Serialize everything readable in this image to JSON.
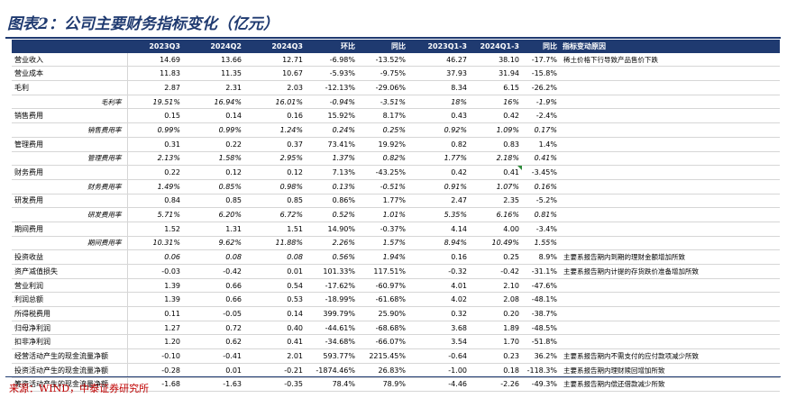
{
  "title": "图表2：公司主要财务指标变化（亿元）",
  "source": "来源：WIND，中泰证券研究所",
  "columns": [
    "",
    "2023Q3",
    "2024Q2",
    "2024Q3",
    "环比",
    "同比",
    "2023Q1-3",
    "2024Q1-3",
    "同比",
    "指标变动原因"
  ],
  "rows": [
    {
      "label": "营业收入",
      "c": [
        "14.69",
        "13.66",
        "12.71",
        "-6.98%",
        "-13.52%",
        "46.27",
        "38.10",
        "-17.7%"
      ],
      "note": "稀土价格下行导致产品售价下跌",
      "ratio": false
    },
    {
      "label": "营业成本",
      "c": [
        "11.83",
        "11.35",
        "10.67",
        "-5.93%",
        "-9.75%",
        "37.93",
        "31.94",
        "-15.8%"
      ],
      "note": "",
      "ratio": false
    },
    {
      "label": "毛利",
      "c": [
        "2.87",
        "2.31",
        "2.03",
        "-12.13%",
        "-29.06%",
        "8.34",
        "6.15",
        "-26.2%"
      ],
      "note": "",
      "ratio": false
    },
    {
      "label": "毛利率",
      "c": [
        "19.51%",
        "16.94%",
        "16.01%",
        "-0.94%",
        "-3.51%",
        "18%",
        "16%",
        "-1.9%"
      ],
      "note": "",
      "ratio": true
    },
    {
      "label": "销售费用",
      "c": [
        "0.15",
        "0.14",
        "0.16",
        "15.92%",
        "8.17%",
        "0.43",
        "0.42",
        "-2.4%"
      ],
      "note": "",
      "ratio": false
    },
    {
      "label": "销售费用率",
      "c": [
        "0.99%",
        "0.99%",
        "1.24%",
        "0.24%",
        "0.25%",
        "0.92%",
        "1.09%",
        "0.17%"
      ],
      "note": "",
      "ratio": true
    },
    {
      "label": "管理费用",
      "c": [
        "0.31",
        "0.22",
        "0.37",
        "73.41%",
        "19.92%",
        "0.82",
        "0.83",
        "1.4%"
      ],
      "note": "",
      "ratio": false
    },
    {
      "label": "管理费用率",
      "c": [
        "2.13%",
        "1.58%",
        "2.95%",
        "1.37%",
        "0.82%",
        "1.77%",
        "2.18%",
        "0.41%"
      ],
      "note": "",
      "ratio": true
    },
    {
      "label": "财务费用",
      "c": [
        "0.22",
        "0.12",
        "0.12",
        "7.13%",
        "-43.25%",
        "0.42",
        "0.41",
        "-3.45%"
      ],
      "note": "",
      "ratio": false
    },
    {
      "label": "财务费用率",
      "c": [
        "1.49%",
        "0.85%",
        "0.98%",
        "0.13%",
        "-0.51%",
        "0.91%",
        "1.07%",
        "0.16%"
      ],
      "note": "",
      "ratio": true
    },
    {
      "label": "研发费用",
      "c": [
        "0.84",
        "0.85",
        "0.85",
        "0.86%",
        "1.77%",
        "2.47",
        "2.35",
        "-5.2%"
      ],
      "note": "",
      "ratio": false
    },
    {
      "label": "研发费用率",
      "c": [
        "5.71%",
        "6.20%",
        "6.72%",
        "0.52%",
        "1.01%",
        "5.35%",
        "6.16%",
        "0.81%"
      ],
      "note": "",
      "ratio": true
    },
    {
      "label": "期间费用",
      "c": [
        "1.52",
        "1.31",
        "1.51",
        "14.90%",
        "-0.37%",
        "4.14",
        "4.00",
        "-3.4%"
      ],
      "note": "",
      "ratio": false
    },
    {
      "label": "期间费用率",
      "c": [
        "10.31%",
        "9.62%",
        "11.88%",
        "2.26%",
        "1.57%",
        "8.94%",
        "10.49%",
        "1.55%"
      ],
      "note": "",
      "ratio": true
    },
    {
      "label": "投资收益",
      "c": [
        "0.06",
        "0.08",
        "0.08",
        "0.56%",
        "1.94%",
        "0.16",
        "0.25",
        "8.9%"
      ],
      "note": "主要系报告期内到期的理财金额增加所致",
      "ratio": false,
      "italic": true
    },
    {
      "label": "资产减值损失",
      "c": [
        "-0.03",
        "-0.42",
        "0.01",
        "101.33%",
        "117.51%",
        "-0.32",
        "-0.42",
        "-31.1%"
      ],
      "note": "主要系报告期内计提的存货跌价准备增加所致",
      "ratio": false
    },
    {
      "label": "营业利润",
      "c": [
        "1.39",
        "0.66",
        "0.54",
        "-17.62%",
        "-60.97%",
        "4.01",
        "2.10",
        "-47.6%"
      ],
      "note": "",
      "ratio": false
    },
    {
      "label": "利润总额",
      "c": [
        "1.39",
        "0.66",
        "0.53",
        "-18.99%",
        "-61.68%",
        "4.02",
        "2.08",
        "-48.1%"
      ],
      "note": "",
      "ratio": false
    },
    {
      "label": "所得税费用",
      "c": [
        "0.11",
        "-0.05",
        "0.14",
        "399.79%",
        "25.90%",
        "0.32",
        "0.20",
        "-38.7%"
      ],
      "note": "",
      "ratio": false
    },
    {
      "label": "归母净利润",
      "c": [
        "1.27",
        "0.72",
        "0.40",
        "-44.61%",
        "-68.68%",
        "3.68",
        "1.89",
        "-48.5%"
      ],
      "note": "",
      "ratio": false
    },
    {
      "label": "扣非净利润",
      "c": [
        "1.20",
        "0.62",
        "0.41",
        "-34.68%",
        "-66.07%",
        "3.54",
        "1.70",
        "-51.8%"
      ],
      "note": "",
      "ratio": false
    },
    {
      "label": "经营活动产生的现金流量净额",
      "c": [
        "-0.10",
        "-0.41",
        "2.01",
        "593.77%",
        "2215.45%",
        "-0.64",
        "0.23",
        "36.2%"
      ],
      "note": "主要系报告期内不需支付的应付款项减少所致",
      "ratio": false
    },
    {
      "label": "投资活动产生的现金流量净额",
      "c": [
        "-0.28",
        "0.01",
        "-0.21",
        "-1874.46%",
        "26.83%",
        "-1.00",
        "0.18",
        "-118.3%"
      ],
      "note": "主要系报告期内理财赎回增加所致",
      "ratio": false
    },
    {
      "label": "筹资活动产生的现金流量净额",
      "c": [
        "-1.68",
        "-1.63",
        "-0.35",
        "78.4%",
        "78.9%",
        "-4.46",
        "-2.26",
        "-49.3%"
      ],
      "note": "主要系报告期内偿还借款减少所致",
      "ratio": false
    }
  ]
}
